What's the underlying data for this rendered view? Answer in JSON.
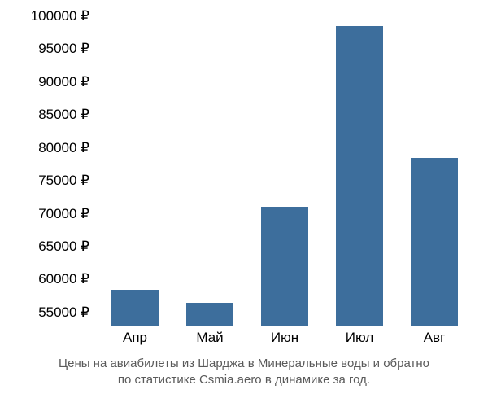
{
  "chart": {
    "type": "bar",
    "categories": [
      "Апр",
      "Май",
      "Июн",
      "Июл",
      "Авг"
    ],
    "values": [
      58500,
      56500,
      71000,
      98500,
      78500
    ],
    "bar_color": "#3d6e9c",
    "background_color": "#ffffff",
    "ylim": [
      53000,
      100000
    ],
    "yticks": [
      55000,
      60000,
      65000,
      70000,
      75000,
      80000,
      85000,
      90000,
      95000,
      100000
    ],
    "ytick_labels": [
      "55000 ₽",
      "60000 ₽",
      "65000 ₽",
      "70000 ₽",
      "75000 ₽",
      "80000 ₽",
      "85000 ₽",
      "90000 ₽",
      "95000 ₽",
      "100000 ₽"
    ],
    "tick_fontsize": 17,
    "tick_color": "#000000",
    "bar_width_ratio": 0.62,
    "caption_line1": "Цены на авиабилеты из Шарджа в Минеральные воды и обратно",
    "caption_line2": "по статистике Csmia.aero в динамике за год.",
    "caption_fontsize": 15,
    "caption_color": "#5a5a5a"
  }
}
